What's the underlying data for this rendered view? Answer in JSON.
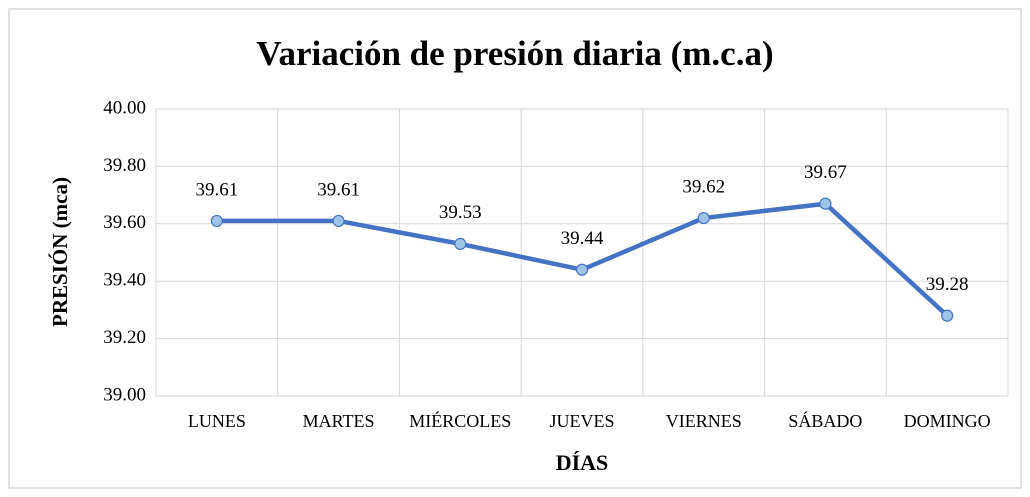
{
  "chart_data": {
    "type": "line",
    "title": "Variación de presión diaria (m.c.a)",
    "x_label": "DÍAS",
    "y_label": "PRESIÓN (mca)",
    "categories": [
      "LUNES",
      "MARTES",
      "MIÉRCOLES",
      "JUEVES",
      "VIERNES",
      "SÁBADO",
      "DOMINGO"
    ],
    "series": [
      {
        "name": "Presión",
        "color": "#4472c4",
        "values": [
          39.61,
          39.61,
          39.53,
          39.44,
          39.62,
          39.67,
          39.28
        ]
      }
    ],
    "ylim": [
      39.0,
      40.0
    ],
    "yticks": [
      {
        "value": 39.0,
        "label": "39.00"
      },
      {
        "value": 39.2,
        "label": "39.20"
      },
      {
        "value": 39.4,
        "label": "39.40"
      },
      {
        "value": 39.6,
        "label": "39.60"
      },
      {
        "value": 39.8,
        "label": "39.80"
      },
      {
        "value": 40.0,
        "label": "40.00"
      }
    ],
    "grid": true
  }
}
